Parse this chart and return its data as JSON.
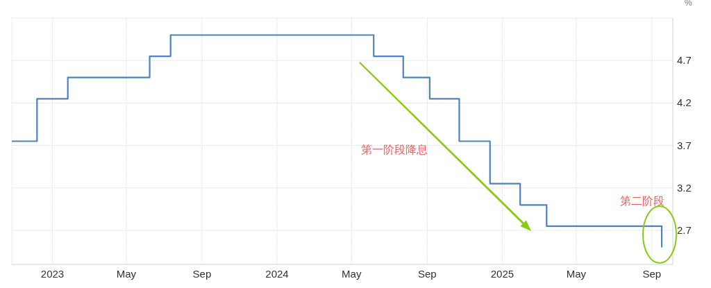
{
  "chart_data": {
    "type": "step",
    "ylabel": "%",
    "x": [
      "2022-10-27",
      "2022-12-07",
      "2023-01-26",
      "2023-06-08",
      "2023-07-12",
      "2024-06-06",
      "2024-07-24",
      "2024-09-05",
      "2024-10-23",
      "2024-12-12",
      "2025-01-30",
      "2025-03-14",
      "2025-09-17"
    ],
    "series": [
      {
        "color": "#4f81bd",
        "values": [
          3.75,
          4.25,
          4.5,
          4.75,
          5.0,
          4.75,
          4.5,
          4.25,
          3.75,
          3.25,
          3.0,
          2.75,
          2.5
        ]
      }
    ],
    "xlim": [
      "2022-10-27",
      "2025-10-05"
    ],
    "xticks": [
      {
        "value": "2023-01-01",
        "label": "2023"
      },
      {
        "value": "2023-05-01",
        "label": "May"
      },
      {
        "value": "2023-09-01",
        "label": "Sep"
      },
      {
        "value": "2024-01-01",
        "label": "2024"
      },
      {
        "value": "2024-05-01",
        "label": "May"
      },
      {
        "value": "2024-09-01",
        "label": "Sep"
      },
      {
        "value": "2025-01-01",
        "label": "2025"
      },
      {
        "value": "2025-05-01",
        "label": "May"
      },
      {
        "value": "2025-09-01",
        "label": "Sep"
      }
    ],
    "ylim": [
      2.3,
      5.2
    ],
    "yticks": [
      2.7,
      3.2,
      3.7,
      4.2,
      4.7
    ],
    "grid": true,
    "annotations": [
      "第一阶段降息",
      "第二阶段"
    ]
  }
}
